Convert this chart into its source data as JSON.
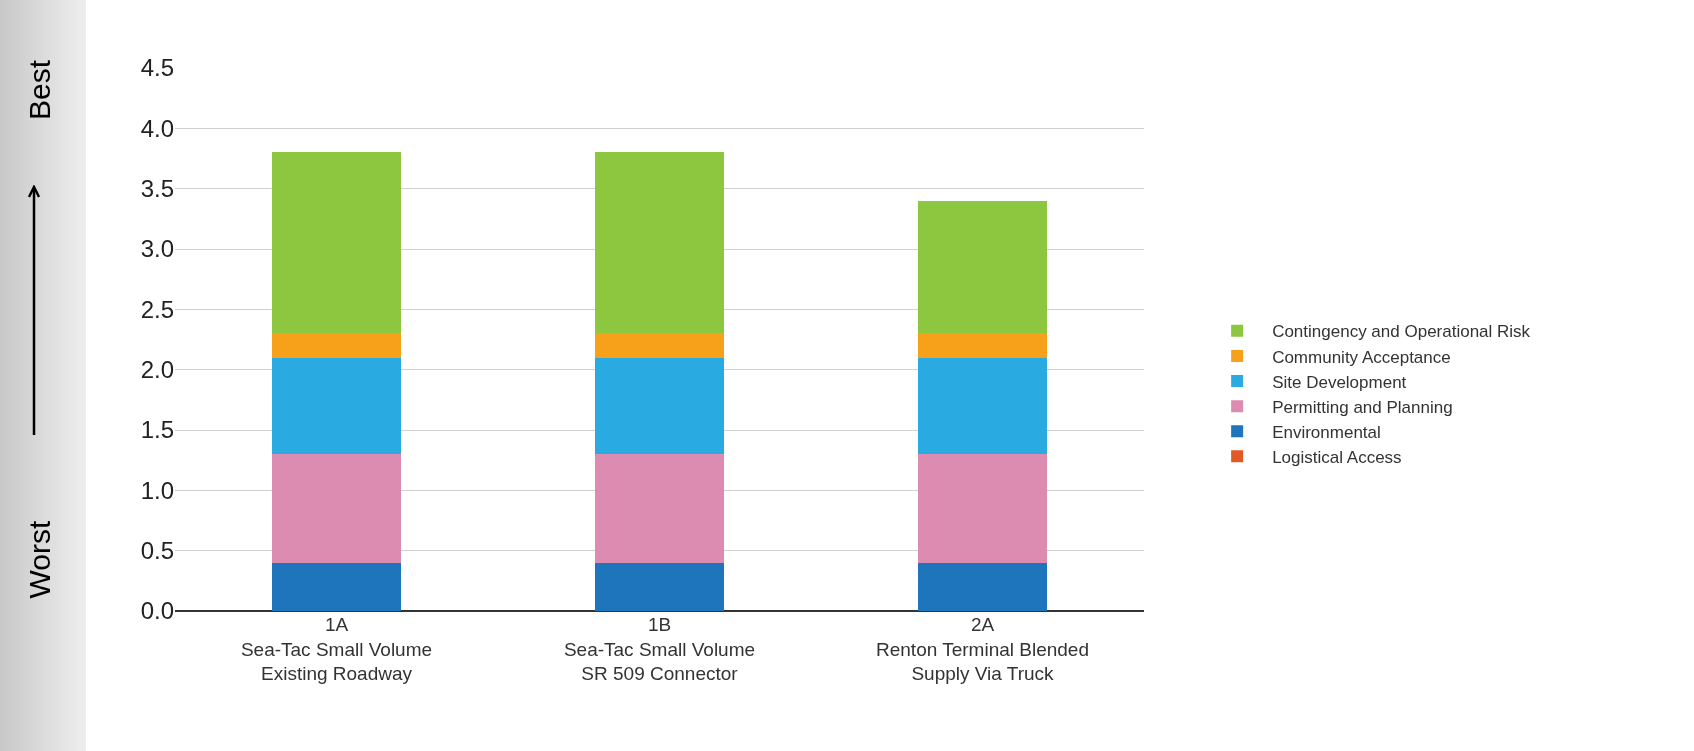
{
  "chart_data": {
    "type": "bar",
    "stacked": true,
    "categories": [
      "1A\nSea-Tac Small Volume\nExisting Roadway",
      "1B\nSea-Tac Small Volume\nSR 509 Connector",
      "2A\nRenton Terminal Blended\nSupply Via Truck"
    ],
    "series": [
      {
        "name": "Logistical Access",
        "color": "#e05a26",
        "values": [
          0,
          0,
          0
        ]
      },
      {
        "name": "Environmental",
        "color": "#1f75bc",
        "values": [
          0.4,
          0.4,
          0.4
        ]
      },
      {
        "name": "Permitting and Planning",
        "color": "#dc8cb0",
        "values": [
          0.9,
          0.9,
          0.9
        ]
      },
      {
        "name": "Site Development",
        "color": "#29abe2",
        "values": [
          0.8,
          0.8,
          0.8
        ]
      },
      {
        "name": "Community Acceptance",
        "color": "#f7a11a",
        "values": [
          0.2,
          0.2,
          0.2
        ]
      },
      {
        "name": "Contingency and Operational Risk",
        "color": "#8dc63f",
        "values": [
          1.5,
          1.5,
          1.1
        ]
      }
    ],
    "ylim": [
      0,
      4.5
    ],
    "yticks": [
      {
        "value": 0,
        "label": "0.0"
      },
      0.5,
      {
        "value": 1,
        "label": "1.0"
      },
      1.5,
      {
        "value": 2,
        "label": "2.0"
      },
      2.5,
      {
        "value": 3,
        "label": "3.0"
      },
      3.5,
      {
        "value": 4,
        "label": "4.0"
      },
      4.5
    ],
    "annotations": [
      "Worst",
      "Best"
    ],
    "grid": "y",
    "legend": "right"
  }
}
